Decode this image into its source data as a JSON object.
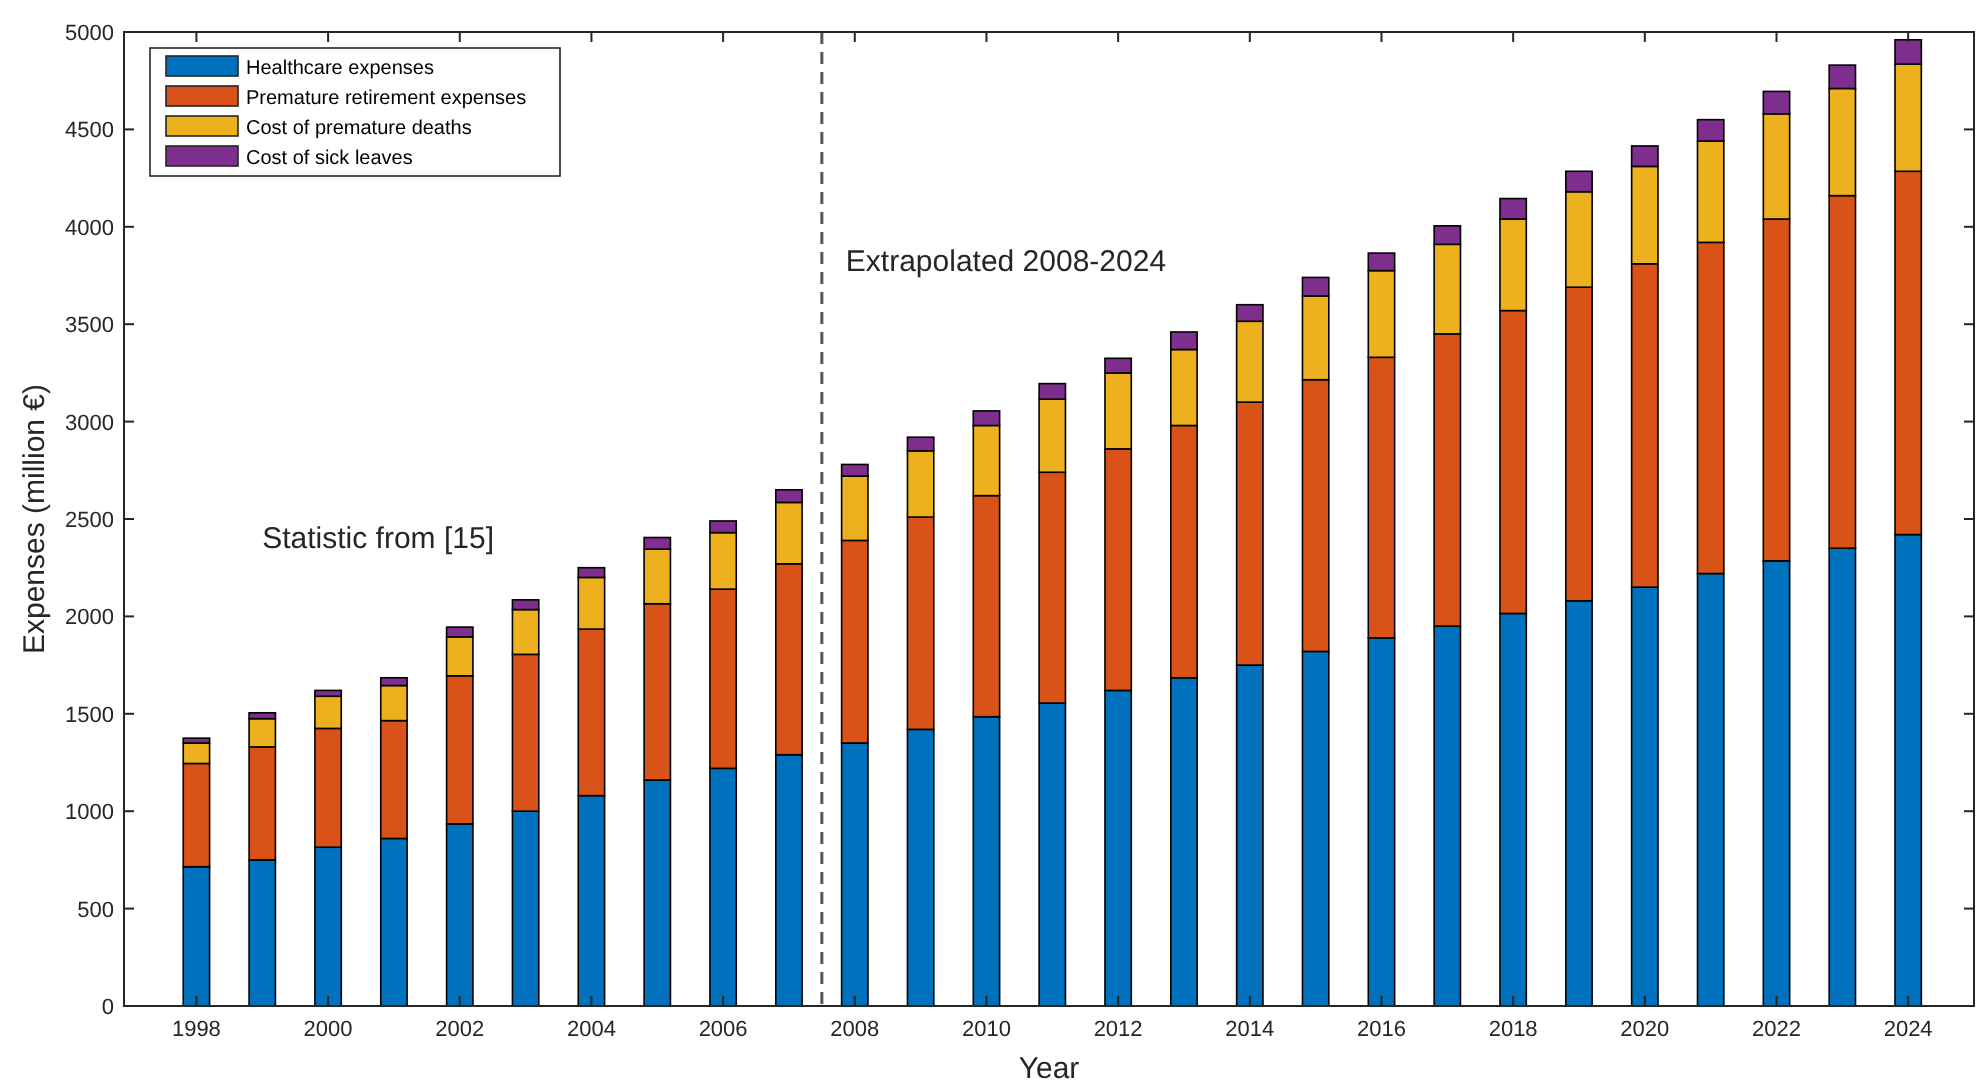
{
  "chart_data": {
    "type": "bar",
    "stacked": true,
    "xlabel": "Year",
    "ylabel": "Expenses (million €)",
    "x": [
      1998,
      1999,
      2000,
      2001,
      2002,
      2003,
      2004,
      2005,
      2006,
      2007,
      2008,
      2009,
      2010,
      2011,
      2012,
      2013,
      2014,
      2015,
      2016,
      2017,
      2018,
      2019,
      2020,
      2021,
      2022,
      2023,
      2024
    ],
    "series": [
      {
        "name": "Healthcare expenses",
        "color": "#0072bd",
        "values": [
          715,
          750,
          815,
          860,
          935,
          1000,
          1080,
          1160,
          1220,
          1290,
          1350,
          1420,
          1485,
          1555,
          1620,
          1685,
          1750,
          1820,
          1890,
          1950,
          2015,
          2080,
          2150,
          2220,
          2285,
          2350,
          2420
        ]
      },
      {
        "name": "Premature retirement expenses",
        "color": "#d95319",
        "values": [
          530,
          580,
          610,
          605,
          760,
          805,
          855,
          905,
          920,
          980,
          1040,
          1090,
          1135,
          1185,
          1240,
          1295,
          1350,
          1395,
          1440,
          1500,
          1555,
          1610,
          1660,
          1700,
          1755,
          1810,
          1865
        ]
      },
      {
        "name": "Cost of premature deaths",
        "color": "#edb120",
        "values": [
          105,
          145,
          165,
          180,
          200,
          230,
          265,
          280,
          290,
          315,
          330,
          340,
          360,
          375,
          390,
          390,
          415,
          430,
          445,
          460,
          470,
          490,
          500,
          520,
          540,
          550,
          550
        ]
      },
      {
        "name": "Cost of sick leaves",
        "color": "#7e2f8e",
        "values": [
          25,
          30,
          30,
          40,
          50,
          50,
          50,
          60,
          60,
          65,
          60,
          70,
          75,
          80,
          75,
          90,
          85,
          95,
          90,
          95,
          105,
          105,
          105,
          110,
          115,
          120,
          125
        ]
      }
    ],
    "xlim": [
      1996.9,
      2025
    ],
    "xticks": [
      1998,
      2000,
      2002,
      2004,
      2006,
      2008,
      2010,
      2012,
      2014,
      2016,
      2018,
      2020,
      2022,
      2024
    ],
    "ylim": [
      0,
      5000
    ],
    "yticks": [
      0,
      500,
      1000,
      1500,
      2000,
      2500,
      3000,
      3500,
      4000,
      4500,
      5000
    ],
    "ref_lines": [
      {
        "axis": "x",
        "value": 2007.5,
        "color": "#555555",
        "line_style": "dashed"
      }
    ],
    "annotations": [
      "Statistic from [15]",
      "Extrapolated 2008-2024"
    ],
    "legend": "top left",
    "grid": false
  }
}
